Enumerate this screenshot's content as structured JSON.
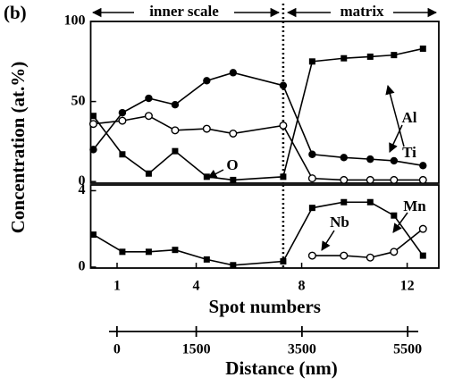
{
  "chart_data": [
    {
      "type": "line",
      "panel_label": "(b)",
      "ylabel": "Concentration (at.%)",
      "x": [
        0.1,
        1.2,
        2.2,
        3.2,
        4.4,
        5.4,
        7.3,
        8.4,
        9.6,
        10.6,
        11.5,
        12.6
      ],
      "xlim": [
        0,
        13.2
      ],
      "ylim": [
        -1,
        100
      ],
      "yticks": [
        0,
        50,
        100
      ],
      "series": [
        {
          "name": "Ti",
          "color": "#000000",
          "marker": "square",
          "values": [
            41,
            17,
            5,
            19,
            3,
            1,
            3,
            75,
            77,
            78,
            79,
            83
          ]
        },
        {
          "name": "Al",
          "color": "#000000",
          "marker": "circle",
          "values": [
            20,
            43,
            52,
            48,
            63,
            68,
            60,
            17,
            15,
            14,
            13,
            10
          ]
        },
        {
          "name": "O",
          "color": "#000000",
          "marker": "open-circle",
          "values": [
            36,
            38,
            41,
            32,
            33,
            30,
            35,
            2,
            1,
            1,
            1,
            1
          ]
        }
      ],
      "annotations": [
        "inner scale",
        "matrix"
      ],
      "divider_x": 7.3
    },
    {
      "type": "line",
      "xlabel": "Spot numbers",
      "x": [
        0.1,
        1.2,
        2.2,
        3.2,
        4.4,
        5.4,
        7.3,
        8.4,
        9.6,
        10.6,
        11.5,
        12.6
      ],
      "xlim": [
        0,
        13.2
      ],
      "xticks": [
        1,
        4,
        8,
        12
      ],
      "ylim": [
        -0.05,
        4.3
      ],
      "yticks": [
        0,
        4
      ],
      "series": [
        {
          "name": "Mn",
          "color": "#000000",
          "marker": "square",
          "values": [
            1.7,
            0.8,
            0.8,
            0.9,
            0.4,
            0.1,
            0.3,
            3.1,
            3.4,
            3.4,
            2.7,
            0.6
          ]
        },
        {
          "name": "Nb",
          "color": "#000000",
          "marker": "open-circle",
          "values": [
            null,
            null,
            null,
            null,
            null,
            null,
            null,
            0.6,
            0.6,
            0.5,
            0.8,
            2.0
          ]
        }
      ],
      "divider_x": 7.3
    },
    {
      "type": "axis",
      "xlabel": "Distance (nm)",
      "xlim": [
        -150,
        5700
      ],
      "xticks": [
        0,
        1500,
        3500,
        5500
      ]
    }
  ]
}
